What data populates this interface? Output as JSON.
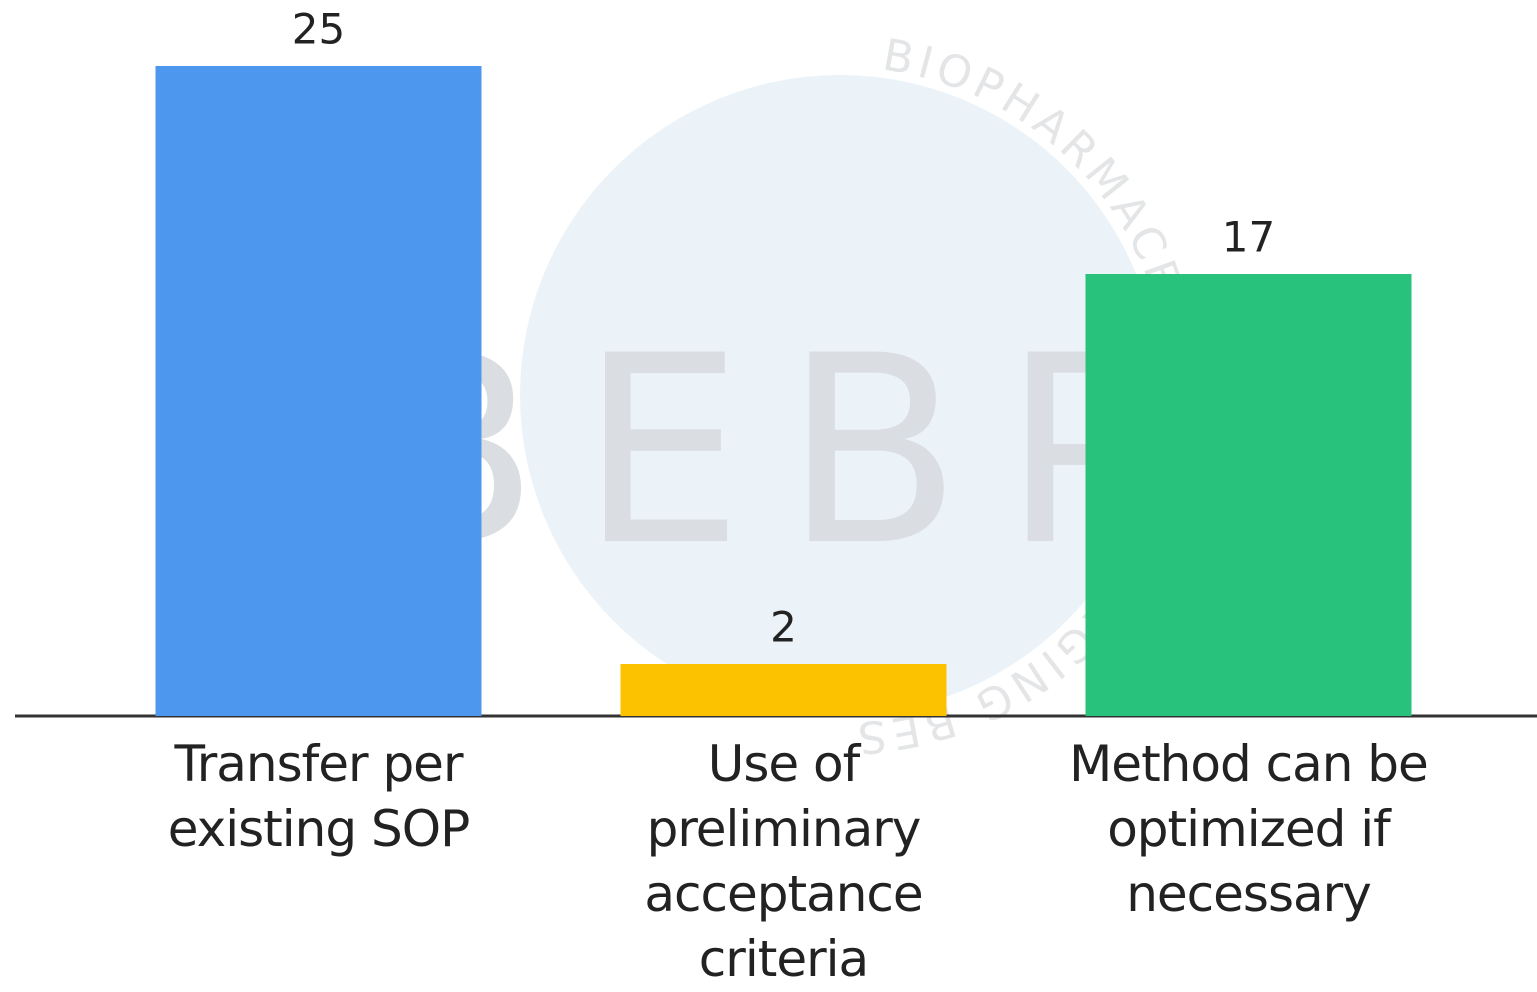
{
  "chart_data": {
    "type": "bar",
    "categories": [
      "Transfer per existing SOP",
      "Use of preliminary acceptance criteria",
      "Method can be optimized if necessary"
    ],
    "values": [
      25,
      2,
      17
    ],
    "colors": [
      "#4d97ee",
      "#fcc200",
      "#29c27c"
    ],
    "watermark": {
      "letters": "BEBP",
      "ring": "BIOPHARMACEUTICAL EMERGING BEST PRACTICES ASSOCIATION"
    }
  }
}
